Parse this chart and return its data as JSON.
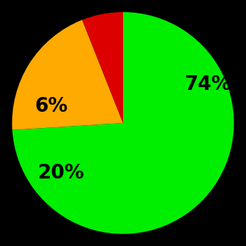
{
  "slices": [
    74,
    20,
    6
  ],
  "labels": [
    "74%",
    "20%",
    "6%"
  ],
  "colors": [
    "#00ee00",
    "#ffaa00",
    "#dd0000"
  ],
  "background_color": "#000000",
  "startangle": 90,
  "counterclock": false,
  "text_color": "#000000",
  "font_size": 20,
  "font_weight": "bold",
  "labeldistance": 0.65
}
